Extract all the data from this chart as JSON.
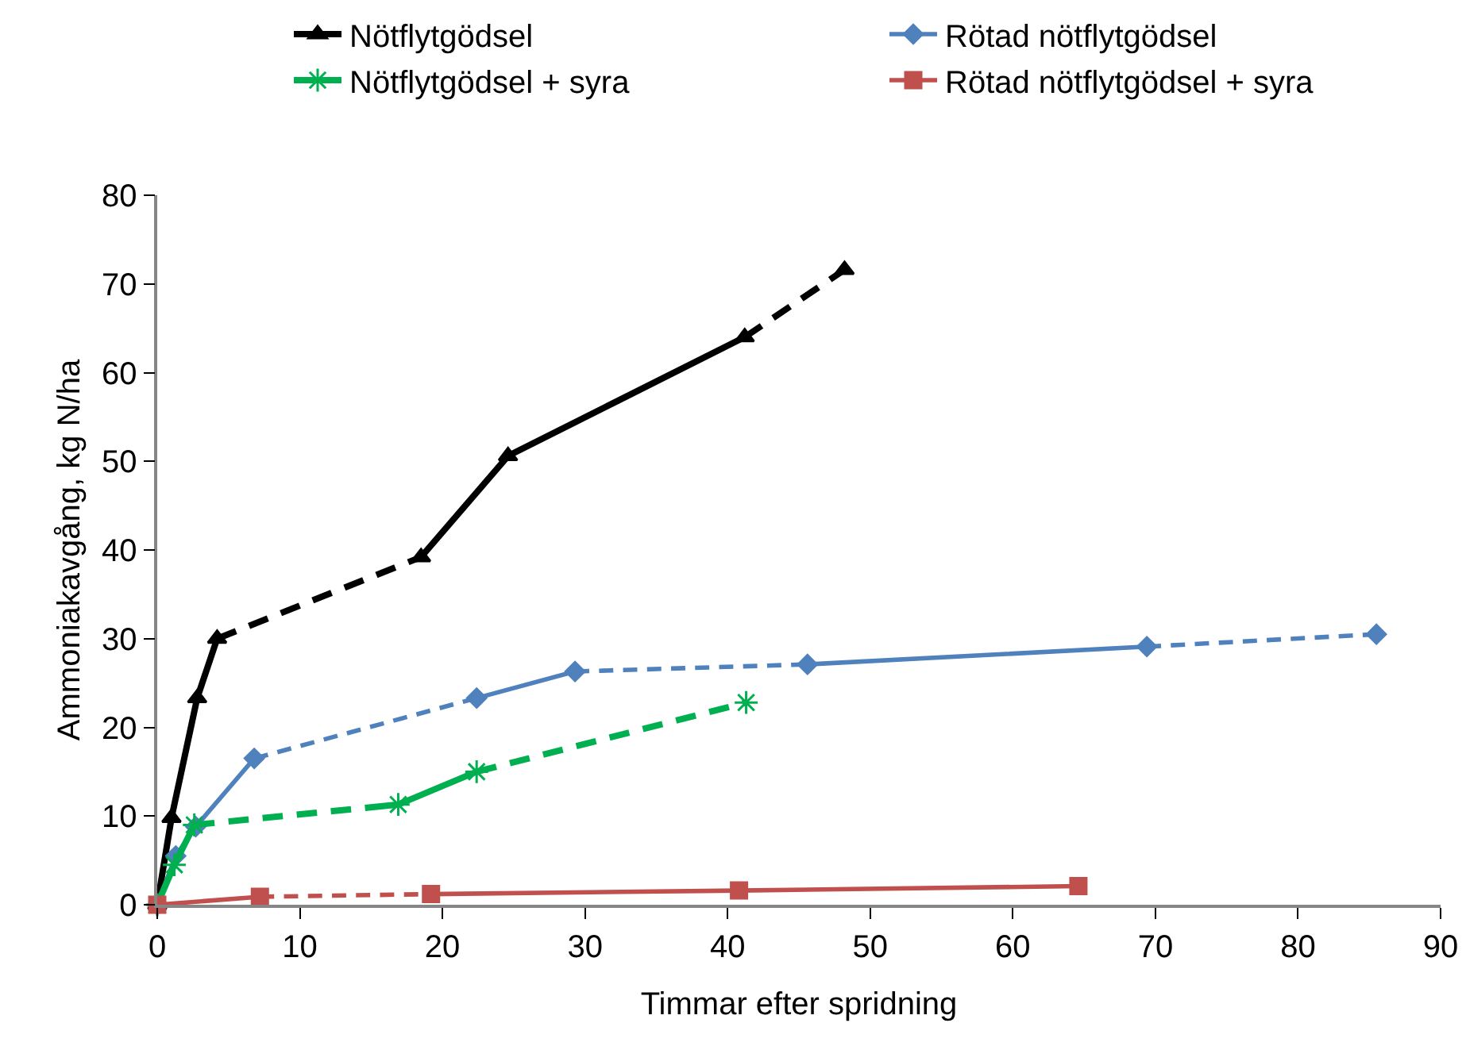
{
  "chart_data": {
    "type": "line",
    "xlabel": "Timmar efter spridning",
    "ylabel": "Ammoniakavgång, kg N/ha",
    "xlim": [
      0,
      90
    ],
    "xticks": [
      0,
      10,
      20,
      30,
      40,
      50,
      60,
      70,
      80,
      90
    ],
    "ylim": [
      0,
      80
    ],
    "yticks": [
      0,
      10,
      20,
      30,
      40,
      50,
      60,
      70,
      80
    ],
    "grid": false,
    "legend": "top",
    "series": [
      {
        "name": "Nötflytgödsel",
        "color": "#000000",
        "marker": "triangle",
        "line_style": [
          "solid",
          "solid",
          "solid",
          "dashed",
          "solid",
          "solid",
          "dashed"
        ],
        "x": [
          0,
          1.0,
          2.8,
          4.2,
          18.5,
          24.6,
          41.2,
          48.2
        ],
        "values": [
          0,
          9.8,
          23.3,
          30.0,
          39.2,
          50.6,
          64.0,
          71.6
        ]
      },
      {
        "name": "Rötad nötflytgödsel",
        "color": "#4f81bd",
        "marker": "diamond",
        "line_style": [
          "solid",
          "solid",
          "solid",
          "dashed",
          "solid",
          "dashed",
          "solid",
          "dashed"
        ],
        "x": [
          0,
          1.3,
          2.7,
          6.8,
          22.4,
          29.3,
          45.6,
          69.4,
          85.5
        ],
        "values": [
          0,
          5.5,
          8.8,
          16.5,
          23.3,
          26.3,
          27.1,
          29.1,
          30.5
        ]
      },
      {
        "name": "Nötflytgödsel + syra",
        "color": "#00b050",
        "marker": "cross",
        "line_style": [
          "solid",
          "solid",
          "dashed",
          "solid",
          "dashed"
        ],
        "x": [
          0,
          1.2,
          2.6,
          16.9,
          22.4,
          41.3
        ],
        "values": [
          0,
          4.5,
          9.0,
          11.3,
          15.0,
          22.8
        ]
      },
      {
        "name": "Rötad nötflytgödsel + syra",
        "color": "#c0504d",
        "marker": "square",
        "line_style": [
          "solid",
          "dashed",
          "solid",
          "solid"
        ],
        "x": [
          0,
          7.2,
          19.2,
          40.8,
          64.6
        ],
        "values": [
          0,
          0.9,
          1.2,
          1.6,
          2.1
        ]
      }
    ]
  }
}
